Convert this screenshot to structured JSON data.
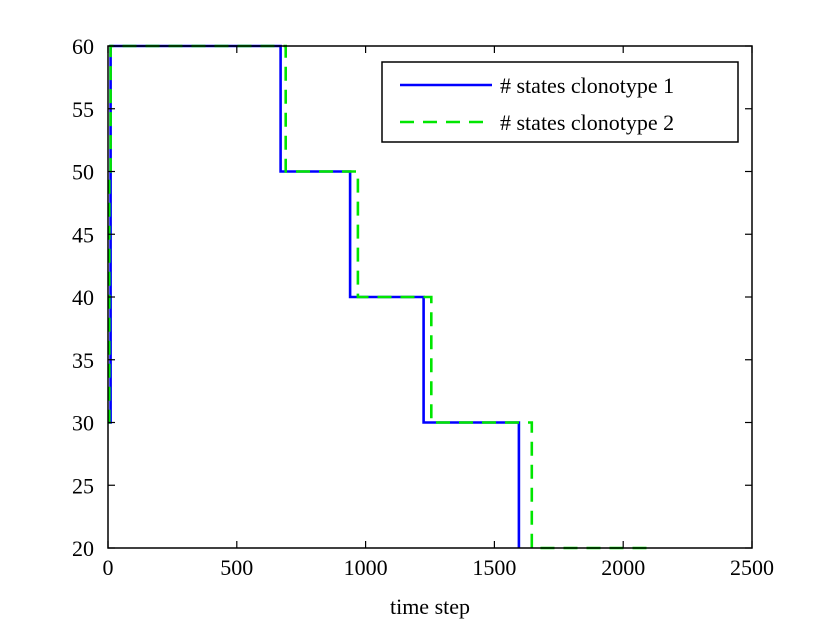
{
  "chart_data": {
    "type": "line",
    "title": "",
    "xlabel": "time step",
    "ylabel": "",
    "xlim": [
      0,
      2500
    ],
    "ylim": [
      20,
      60
    ],
    "xticks": [
      0,
      500,
      1000,
      1500,
      2000,
      2500
    ],
    "yticks": [
      20,
      25,
      30,
      35,
      40,
      45,
      50,
      55,
      60
    ],
    "grid": false,
    "legend_position": "top-right",
    "series": [
      {
        "name": "# states clonotype 1",
        "color": "#0000ff",
        "style": "solid",
        "x": [
          0,
          10,
          10,
          670,
          670,
          940,
          940,
          1225,
          1225,
          1595,
          1595
        ],
        "y": [
          30,
          30,
          60,
          60,
          50,
          50,
          40,
          40,
          30,
          30,
          20
        ]
      },
      {
        "name": "# states clonotype 2",
        "color": "#00e600",
        "style": "dashed",
        "x": [
          0,
          5,
          5,
          10,
          10,
          690,
          690,
          970,
          970,
          1255,
          1255,
          1645,
          1645,
          2120
        ],
        "y": [
          30,
          30,
          50,
          50,
          60,
          60,
          50,
          50,
          40,
          40,
          30,
          30,
          20,
          20
        ]
      }
    ]
  }
}
